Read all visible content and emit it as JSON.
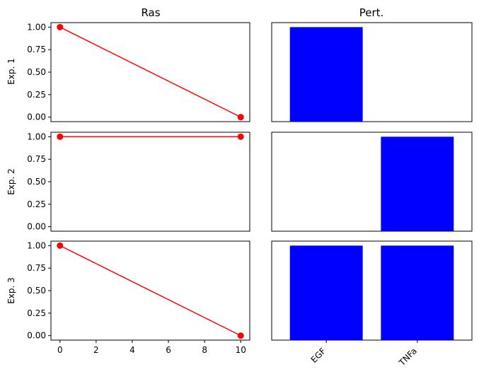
{
  "chart_data": {
    "type": "grid",
    "columns": [
      "Ras",
      "Pert."
    ],
    "rows": [
      "Exp. 1",
      "Exp. 2",
      "Exp. 3"
    ],
    "left_panels": {
      "type": "line",
      "series_color": "#ff0000",
      "x_ticks": [
        0,
        2,
        4,
        6,
        8,
        10
      ],
      "x_tick_labels": [
        "0",
        "2",
        "4",
        "6",
        "8",
        "10"
      ],
      "y_ticks": [
        0.0,
        0.25,
        0.5,
        0.75,
        1.0
      ],
      "y_tick_labels": [
        "0.00",
        "0.25",
        "0.50",
        "0.75",
        "1.00"
      ],
      "xlim": [
        -0.5,
        10.5
      ],
      "ylim": [
        -0.05,
        1.05
      ],
      "data": [
        {
          "x": [
            0,
            10
          ],
          "y": [
            1.0,
            0.0
          ]
        },
        {
          "x": [
            0,
            10
          ],
          "y": [
            1.0,
            1.0
          ]
        },
        {
          "x": [
            0,
            10
          ],
          "y": [
            1.0,
            0.0
          ]
        }
      ]
    },
    "right_panels": {
      "type": "bar",
      "bar_color": "#0000ff",
      "categories": [
        "EGF",
        "TNFa"
      ],
      "ylim": [
        -0.05,
        1.05
      ],
      "data": [
        [
          1,
          0
        ],
        [
          0,
          1
        ],
        [
          1,
          1
        ]
      ]
    }
  }
}
